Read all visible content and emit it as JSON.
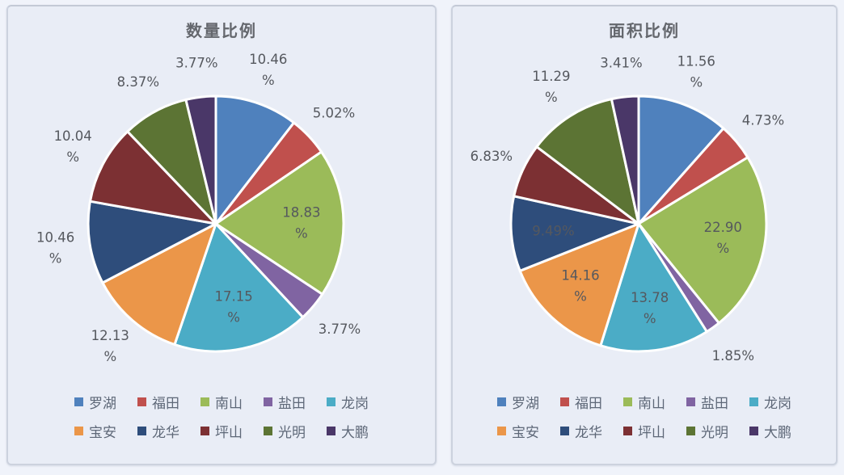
{
  "page": {
    "background_color": "#f0f3fa",
    "panel_background": "#e9edf6",
    "panel_border_color": "#ccd2de",
    "title_color": "#64676d",
    "label_color": "#55585e",
    "legend_text_color": "#5e6878"
  },
  "chart_data": [
    {
      "type": "pie",
      "title": "数量比例",
      "categories": [
        "罗湖",
        "福田",
        "南山",
        "盐田",
        "龙岗",
        "宝安",
        "龙华",
        "坪山",
        "光明",
        "大鹏"
      ],
      "values": [
        10.46,
        5.02,
        18.83,
        3.77,
        17.15,
        12.13,
        10.46,
        10.04,
        8.37,
        3.77
      ],
      "labels": [
        "10.46%",
        "5.02%",
        "18.83%",
        "3.77%",
        "17.15%",
        "12.13%",
        "10.46%",
        "10.04%",
        "8.37%",
        "3.77%"
      ],
      "colors": [
        "#4F81BD",
        "#C0504D",
        "#9BBB59",
        "#8064A2",
        "#4BACC6",
        "#EB9649",
        "#2E4D7B",
        "#7C3033",
        "#5C7434",
        "#4A3768"
      ],
      "start_angle_deg": 0,
      "direction": "clockwise",
      "label_placement": [
        "outside",
        "outside",
        "inside",
        "outside",
        "inside",
        "outside",
        "outside",
        "outside",
        "outside",
        "outside"
      ],
      "legend_position": "bottom",
      "legend_rows": 2
    },
    {
      "type": "pie",
      "title": "面积比例",
      "categories": [
        "罗湖",
        "福田",
        "南山",
        "盐田",
        "龙岗",
        "宝安",
        "龙华",
        "坪山",
        "光明",
        "大鹏"
      ],
      "values": [
        11.56,
        4.73,
        22.9,
        1.85,
        13.78,
        14.16,
        9.49,
        6.83,
        11.29,
        3.41
      ],
      "labels": [
        "11.56%",
        "4.73%",
        "22.90%",
        "1.85%",
        "13.78%",
        "14.16%",
        "9.49%",
        "6.83%",
        "11.29%",
        "3.41%"
      ],
      "colors": [
        "#4F81BD",
        "#C0504D",
        "#9BBB59",
        "#8064A2",
        "#4BACC6",
        "#EB9649",
        "#2E4D7B",
        "#7C3033",
        "#5C7434",
        "#4A3768"
      ],
      "start_angle_deg": 0,
      "direction": "clockwise",
      "label_placement": [
        "outside",
        "outside",
        "inside",
        "outside",
        "inside",
        "inside",
        "inside",
        "outside",
        "outside",
        "outside"
      ],
      "legend_position": "bottom",
      "legend_rows": 2
    }
  ]
}
